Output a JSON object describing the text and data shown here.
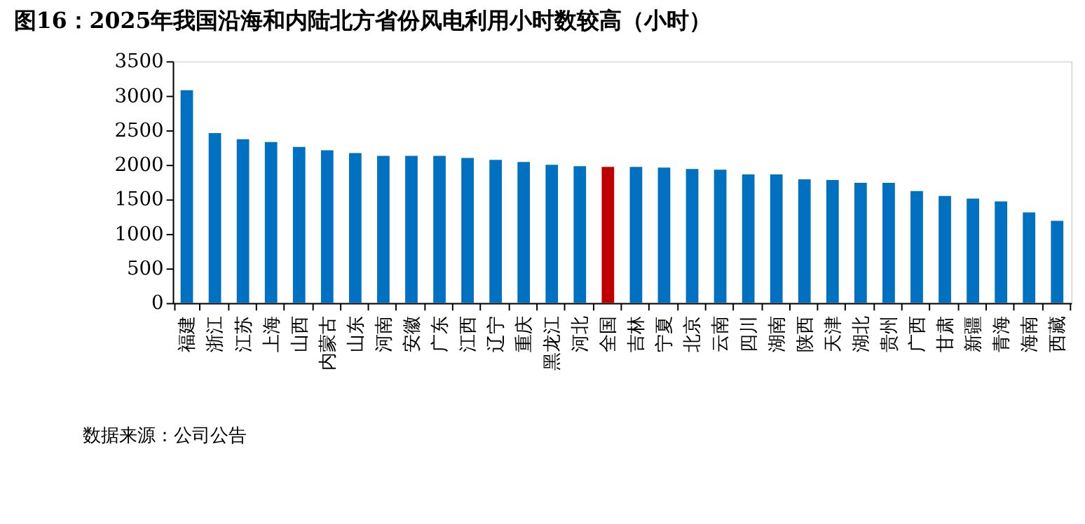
{
  "chart_data": {
    "type": "bar",
    "title": "图16：2025年我国沿海和内陆北方省份风电利用小时数较高（小时）",
    "categories": [
      "福建",
      "浙江",
      "江苏",
      "上海",
      "山西",
      "内蒙古",
      "山东",
      "河南",
      "安徽",
      "广东",
      "江西",
      "辽宁",
      "重庆",
      "黑龙江",
      "河北",
      "全国",
      "吉林",
      "宁夏",
      "北京",
      "云南",
      "四川",
      "湖南",
      "陕西",
      "天津",
      "湖北",
      "贵州",
      "广西",
      "甘肃",
      "新疆",
      "青海",
      "海南",
      "西藏"
    ],
    "values": [
      3080,
      2460,
      2370,
      2330,
      2260,
      2210,
      2170,
      2130,
      2130,
      2130,
      2100,
      2070,
      2040,
      2000,
      1980,
      1970,
      1970,
      1960,
      1940,
      1930,
      1860,
      1860,
      1790,
      1780,
      1740,
      1740,
      1620,
      1550,
      1510,
      1470,
      1310,
      1190
    ],
    "colors": [
      "#0070c0",
      "#0070c0",
      "#0070c0",
      "#0070c0",
      "#0070c0",
      "#0070c0",
      "#0070c0",
      "#0070c0",
      "#0070c0",
      "#0070c0",
      "#0070c0",
      "#0070c0",
      "#0070c0",
      "#0070c0",
      "#0070c0",
      "#c00000",
      "#0070c0",
      "#0070c0",
      "#0070c0",
      "#0070c0",
      "#0070c0",
      "#0070c0",
      "#0070c0",
      "#0070c0",
      "#0070c0",
      "#0070c0",
      "#0070c0",
      "#0070c0",
      "#0070c0",
      "#0070c0",
      "#0070c0",
      "#0070c0"
    ],
    "ylim": [
      0,
      3500
    ],
    "yticks": [
      0,
      500,
      1000,
      1500,
      2000,
      2500,
      3000,
      3500
    ],
    "grid": false,
    "annotations": [
      "数据来源：公司公告"
    ]
  }
}
